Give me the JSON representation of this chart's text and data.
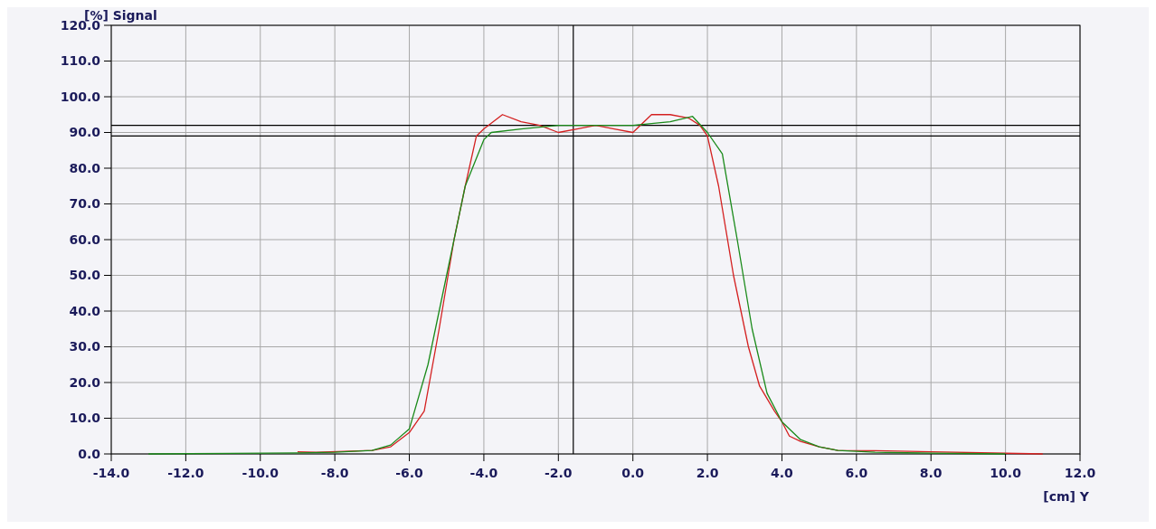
{
  "chart_data": {
    "type": "line",
    "xlabel": "[cm] Y",
    "ylabel": "[%] Signal",
    "xlim": [
      -14,
      12
    ],
    "ylim": [
      0,
      120
    ],
    "xticks": [
      {
        "value": -14,
        "label": "-14.0"
      },
      {
        "value": -12,
        "label": "-12.0"
      },
      {
        "value": -10,
        "label": "-10.0"
      },
      {
        "value": -8,
        "label": "-8.0"
      },
      {
        "value": -6,
        "label": "-6.0"
      },
      {
        "value": -4,
        "label": "-4.0"
      },
      {
        "value": -2,
        "label": "-2.0"
      },
      {
        "value": 0,
        "label": "0.0"
      },
      {
        "value": 2,
        "label": "2.0"
      },
      {
        "value": 4,
        "label": "4.0"
      },
      {
        "value": 6,
        "label": "6.0"
      },
      {
        "value": 8,
        "label": "8.0"
      },
      {
        "value": 10,
        "label": "10.0"
      },
      {
        "value": 12,
        "label": "12.0"
      }
    ],
    "yticks": [
      {
        "value": 0,
        "label": "0.0"
      },
      {
        "value": 10,
        "label": "10.0"
      },
      {
        "value": 20,
        "label": "20.0"
      },
      {
        "value": 30,
        "label": "30.0"
      },
      {
        "value": 40,
        "label": "40.0"
      },
      {
        "value": 50,
        "label": "50.0"
      },
      {
        "value": 60,
        "label": "60.0"
      },
      {
        "value": 70,
        "label": "70.0"
      },
      {
        "value": 80,
        "label": "80.0"
      },
      {
        "value": 90,
        "label": "90.0"
      },
      {
        "value": 100,
        "label": "100.0"
      },
      {
        "value": 110,
        "label": "110.0"
      },
      {
        "value": 120,
        "label": "120.0"
      }
    ],
    "grid": true,
    "line_style": "solid",
    "marker": "none",
    "ref_lines": [
      {
        "axis": "y",
        "value": 92,
        "color": "#000000"
      },
      {
        "axis": "y",
        "value": 89,
        "color": "#000000"
      },
      {
        "axis": "x",
        "value": -1.6,
        "color": "#000000"
      }
    ],
    "series": [
      {
        "color": "#d42020",
        "x": [
          -9,
          -8.5,
          -7,
          -6.5,
          -6,
          -5.6,
          -5.2,
          -4.8,
          -4.5,
          -4.2,
          -4,
          -3.5,
          -3,
          -2.5,
          -2,
          -1.5,
          -1,
          -0.5,
          0,
          0.5,
          1,
          1.5,
          1.8,
          2,
          2.3,
          2.7,
          3.1,
          3.4,
          3.8,
          4,
          4.2,
          4.5,
          5,
          5.5,
          6.5,
          11
        ],
        "values": [
          0.6,
          0.5,
          1,
          2,
          6,
          12,
          35,
          60,
          75,
          89,
          91,
          95,
          93,
          92,
          90,
          91,
          92,
          91,
          90,
          95,
          95,
          94,
          92,
          89,
          75,
          50,
          30,
          19,
          12,
          9,
          5,
          3.5,
          2,
          1,
          0.9,
          0
        ]
      },
      {
        "color": "#1a8a1a",
        "x": [
          -13,
          -9,
          -8,
          -7,
          -6.5,
          -6,
          -5.5,
          -5,
          -4.5,
          -4,
          -3.8,
          -3,
          -2,
          -1,
          0,
          1,
          1.6,
          2,
          2.4,
          2.8,
          3.2,
          3.6,
          4,
          4.5,
          5,
          5.5,
          6.5,
          8,
          10
        ],
        "values": [
          0,
          0.3,
          0.5,
          1,
          2.5,
          7,
          25,
          50,
          75,
          88,
          90,
          91,
          92,
          92,
          92,
          93,
          94.5,
          90,
          84,
          60,
          35,
          17,
          9,
          4,
          2,
          1,
          0.5,
          0.2,
          0
        ]
      }
    ]
  }
}
